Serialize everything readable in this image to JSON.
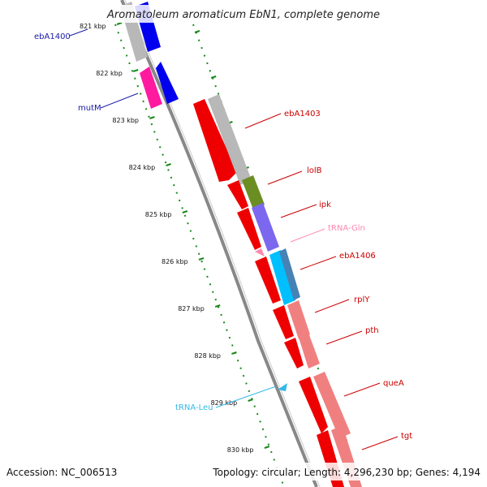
{
  "title": "Aromatoleum aromaticum EbN1, complete genome",
  "footer": {
    "accession": "Accession: NC_006513",
    "summary": "Topology: circular; Length: 4,296,230 bp; Genes: 4,194"
  },
  "scale_ticks": [
    {
      "label": "821 kbp",
      "t": 0.0
    },
    {
      "label": "822 kbp",
      "t": 1.0
    },
    {
      "label": "823 kbp",
      "t": 2.0
    },
    {
      "label": "824 kbp",
      "t": 3.0
    },
    {
      "label": "825 kbp",
      "t": 4.0
    },
    {
      "label": "826 kbp",
      "t": 5.0
    },
    {
      "label": "827 kbp",
      "t": 6.0
    },
    {
      "label": "828 kbp",
      "t": 7.0
    },
    {
      "label": "829 kbp",
      "t": 8.0
    },
    {
      "label": "830 kbp",
      "t": 9.0
    }
  ],
  "features": [
    {
      "name": "ebA1400",
      "color": "#0000ee",
      "label_color": "#1a1aa8",
      "strand": "reverse"
    },
    {
      "name": "mutM",
      "color": "#ff1aa0",
      "label_color": "#1a1aa8",
      "strand": "reverse"
    },
    {
      "name": "ebA1403",
      "color": "#ee0000",
      "label_color": "#cc0000",
      "strand": "forward"
    },
    {
      "name": "lolB",
      "color": "#ee0000",
      "label_color": "#cc0000",
      "strand": "forward"
    },
    {
      "name": "ipk",
      "color": "#ee0000",
      "label_color": "#cc0000",
      "strand": "forward"
    },
    {
      "name": "tRNA-Gln",
      "color": "#ff88b0",
      "label_color": "#ff88b0",
      "strand": "reverse"
    },
    {
      "name": "ebA1406",
      "color": "#ee0000",
      "label_color": "#cc0000",
      "strand": "forward"
    },
    {
      "name": "rplY",
      "color": "#ee0000",
      "label_color": "#cc0000",
      "strand": "forward"
    },
    {
      "name": "pth",
      "color": "#ee0000",
      "label_color": "#cc0000",
      "strand": "forward"
    },
    {
      "name": "queA",
      "color": "#ee0000",
      "label_color": "#cc0000",
      "strand": "forward"
    },
    {
      "name": "tgt",
      "color": "#ee0000",
      "label_color": "#cc0000",
      "strand": "forward"
    },
    {
      "name": "tRNA-Leu",
      "color": "#33b8e8",
      "label_color": "#33b8e8",
      "strand": "forward"
    }
  ],
  "cog_colors": {
    "grey": "#b8b8b8",
    "olive": "#6b8e23",
    "purple": "#7b68ee",
    "cyan": "#00bfff",
    "steel": "#4682b4",
    "pink": "#f08080"
  }
}
